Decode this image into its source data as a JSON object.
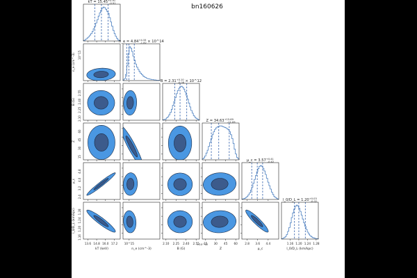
{
  "figure": {
    "title": "bn160626"
  },
  "colors": {
    "outer": "#4a97e2",
    "inner": "#3c5b8c",
    "edge": "#1a2a44",
    "hist": "#4a7fc0",
    "dash": "#2a5aa8"
  },
  "chart_data": {
    "type": "corner",
    "params": [
      {
        "name": "kT",
        "label": "kT (keV)",
        "title_text": "kT = 15.45",
        "title_sup": "+0.91",
        "title_sub": "-0.91",
        "title_mult": "",
        "range": [
          13.0,
          18.0
        ],
        "ticks": [
          13.6,
          14.8,
          16.0,
          17.2
        ],
        "tick_labels": [
          "13.6",
          "14.8",
          "16.0",
          "17.2"
        ],
        "quantiles": [
          14.54,
          15.45,
          16.36
        ],
        "y_tick_labels": []
      },
      {
        "name": "ne",
        "label": "n_e (cm^-3)",
        "title_text": "n_e = 4.84",
        "title_sup": "+4.33",
        "title_sub": "-1.82",
        "title_mult": "× 10^14",
        "range": [
          0,
          30
        ],
        "ticks": [
          5
        ],
        "tick_labels": [
          "10^15"
        ],
        "quantiles": [
          3.02,
          4.84,
          9.17
        ],
        "y_tick_labels": [
          "10^15"
        ],
        "y_axis_label": "n_e (cm^-3)"
      },
      {
        "name": "B",
        "label": "B (G)",
        "title_text": "B = 2.31",
        "title_sup": "+0.10",
        "title_sub": "-0.08",
        "title_mult": "× 10^12",
        "range": [
          2.05,
          2.6
        ],
        "ticks": [
          2.1,
          2.25,
          2.4,
          2.55
        ],
        "tick_labels": [
          "2.10",
          "2.25",
          "2.40",
          "2.55"
        ],
        "quantiles": [
          2.23,
          2.31,
          2.41
        ],
        "y_tick_labels": [
          "2.55",
          "2.40",
          "2.25",
          "2.10"
        ],
        "y_axis_label": "B (G)",
        "exponent_label": "×10^12"
      },
      {
        "name": "Z",
        "label": "Z",
        "title_text": "Z = 34.63",
        "title_sup": "+15.69",
        "title_sub": "-11.09",
        "title_mult": "",
        "range": [
          10,
          65
        ],
        "ticks": [
          15,
          30,
          45,
          60
        ],
        "tick_labels": [
          "15",
          "30",
          "45",
          "60"
        ],
        "quantiles": [
          23.54,
          34.63,
          50.32
        ],
        "y_tick_labels": [
          "60",
          "45",
          "30",
          "15"
        ],
        "y_axis_label": "Z"
      },
      {
        "name": "mu",
        "label": "μ_c",
        "title_text": "μ_c = 3.57",
        "title_sup": "+0.41",
        "title_sub": "-0.42",
        "title_mult": "",
        "range": [
          2.4,
          5.2
        ],
        "ticks": [
          2.8,
          3.6,
          4.4
        ],
        "tick_labels": [
          "2.8",
          "3.6",
          "4.4"
        ],
        "quantiles": [
          3.15,
          3.57,
          3.98
        ],
        "y_tick_labels": [
          "4.8",
          "4.0",
          "3.2",
          "2.4"
        ],
        "y_axis_label": "μ_c"
      },
      {
        "name": "lD",
        "label": "l_0/D_L (km/kpc)",
        "title_text": "l_0/D_L = 1.20",
        "title_sup": "+0.03",
        "title_sub": "-0.02",
        "title_mult": "",
        "range": [
          1.12,
          1.29
        ],
        "ticks": [
          1.16,
          1.2,
          1.24,
          1.28
        ],
        "tick_labels": [
          "1.16",
          "1.20",
          "1.24",
          "1.28"
        ],
        "quantiles": [
          1.18,
          1.2,
          1.23
        ],
        "y_tick_labels": [
          "1.28",
          "1.24",
          "1.20",
          "1.16"
        ],
        "y_axis_label": "l_0/D_L (km/kpc)"
      }
    ],
    "histograms": [
      [
        1,
        2,
        4,
        6,
        8,
        11,
        14,
        18,
        23,
        28,
        34,
        40,
        47,
        53,
        58,
        62,
        64,
        63,
        60,
        56,
        52,
        44,
        36,
        28,
        20,
        14,
        9,
        5,
        2,
        1
      ],
      [
        2,
        6,
        18,
        45,
        80,
        100,
        96,
        86,
        72,
        60,
        49,
        40,
        33,
        27,
        22,
        18,
        14,
        11,
        9,
        7,
        6,
        5,
        4,
        3,
        3,
        2,
        2,
        1,
        1,
        1
      ],
      [
        1,
        2,
        3,
        6,
        9,
        14,
        20,
        28,
        38,
        48,
        58,
        68,
        76,
        82,
        86,
        87,
        85,
        80,
        73,
        64,
        54,
        44,
        34,
        25,
        18,
        12,
        8,
        5,
        3,
        1
      ],
      [
        2,
        4,
        8,
        14,
        20,
        28,
        36,
        44,
        52,
        58,
        63,
        66,
        68,
        69,
        70,
        70,
        69,
        68,
        67,
        66,
        64,
        62,
        58,
        52,
        44,
        34,
        22,
        12,
        5,
        2
      ],
      [
        1,
        2,
        3,
        5,
        8,
        12,
        17,
        24,
        32,
        42,
        52,
        62,
        72,
        80,
        86,
        88,
        86,
        81,
        74,
        65,
        55,
        45,
        36,
        27,
        19,
        13,
        8,
        5,
        3,
        1
      ],
      [
        1,
        2,
        4,
        7,
        12,
        20,
        30,
        42,
        56,
        68,
        78,
        85,
        88,
        86,
        80,
        72,
        62,
        52,
        42,
        33,
        25,
        18,
        13,
        9,
        6,
        4,
        3,
        2,
        1,
        1
      ]
    ],
    "blobs": [
      {
        "row": 1,
        "col": 0,
        "cx": 15.4,
        "cy": 5.0,
        "sx": 0.95,
        "sy": 2.5,
        "corr": 0.1
      },
      {
        "row": 2,
        "col": 0,
        "cx": 15.4,
        "cy": 2.31,
        "sx": 0.9,
        "sy": 0.09,
        "corr": 0.0
      },
      {
        "row": 2,
        "col": 1,
        "cx": 5.8,
        "cy": 2.31,
        "sx": 2.6,
        "sy": 0.09,
        "corr": 0.05
      },
      {
        "row": 3,
        "col": 0,
        "cx": 15.45,
        "cy": 36.0,
        "sx": 0.9,
        "sy": 12.5,
        "corr": 0.0
      },
      {
        "row": 3,
        "col": 1,
        "cx": 7.0,
        "cy": 30.0,
        "sx": 4.5,
        "sy": 15.0,
        "corr": -0.93
      },
      {
        "row": 3,
        "col": 2,
        "cx": 2.31,
        "cy": 35.0,
        "sx": 0.085,
        "sy": 12.5,
        "corr": 0.0
      },
      {
        "row": 4,
        "col": 0,
        "cx": 15.4,
        "cy": 3.57,
        "sx": 0.95,
        "sy": 0.42,
        "corr": 0.97
      },
      {
        "row": 4,
        "col": 1,
        "cx": 6.0,
        "cy": 3.57,
        "sx": 2.8,
        "sy": 0.42,
        "corr": 0.05
      },
      {
        "row": 4,
        "col": 2,
        "cx": 2.31,
        "cy": 3.55,
        "sx": 0.09,
        "sy": 0.42,
        "corr": 0.0
      },
      {
        "row": 4,
        "col": 3,
        "cx": 36.0,
        "cy": 3.57,
        "sx": 12.0,
        "sy": 0.42,
        "corr": 0.05
      },
      {
        "row": 5,
        "col": 0,
        "cx": 15.4,
        "cy": 1.203,
        "sx": 0.95,
        "sy": 0.025,
        "corr": -0.93
      },
      {
        "row": 5,
        "col": 1,
        "cx": 5.5,
        "cy": 1.2,
        "sx": 2.5,
        "sy": 0.025,
        "corr": -0.1
      },
      {
        "row": 5,
        "col": 2,
        "cx": 2.31,
        "cy": 1.2,
        "sx": 0.09,
        "sy": 0.025,
        "corr": 0.0
      },
      {
        "row": 5,
        "col": 3,
        "cx": 36.0,
        "cy": 1.2,
        "sx": 12.0,
        "sy": 0.025,
        "corr": 0.05
      },
      {
        "row": 5,
        "col": 4,
        "cx": 3.55,
        "cy": 1.203,
        "sx": 0.42,
        "sy": 0.025,
        "corr": -0.92
      }
    ]
  }
}
